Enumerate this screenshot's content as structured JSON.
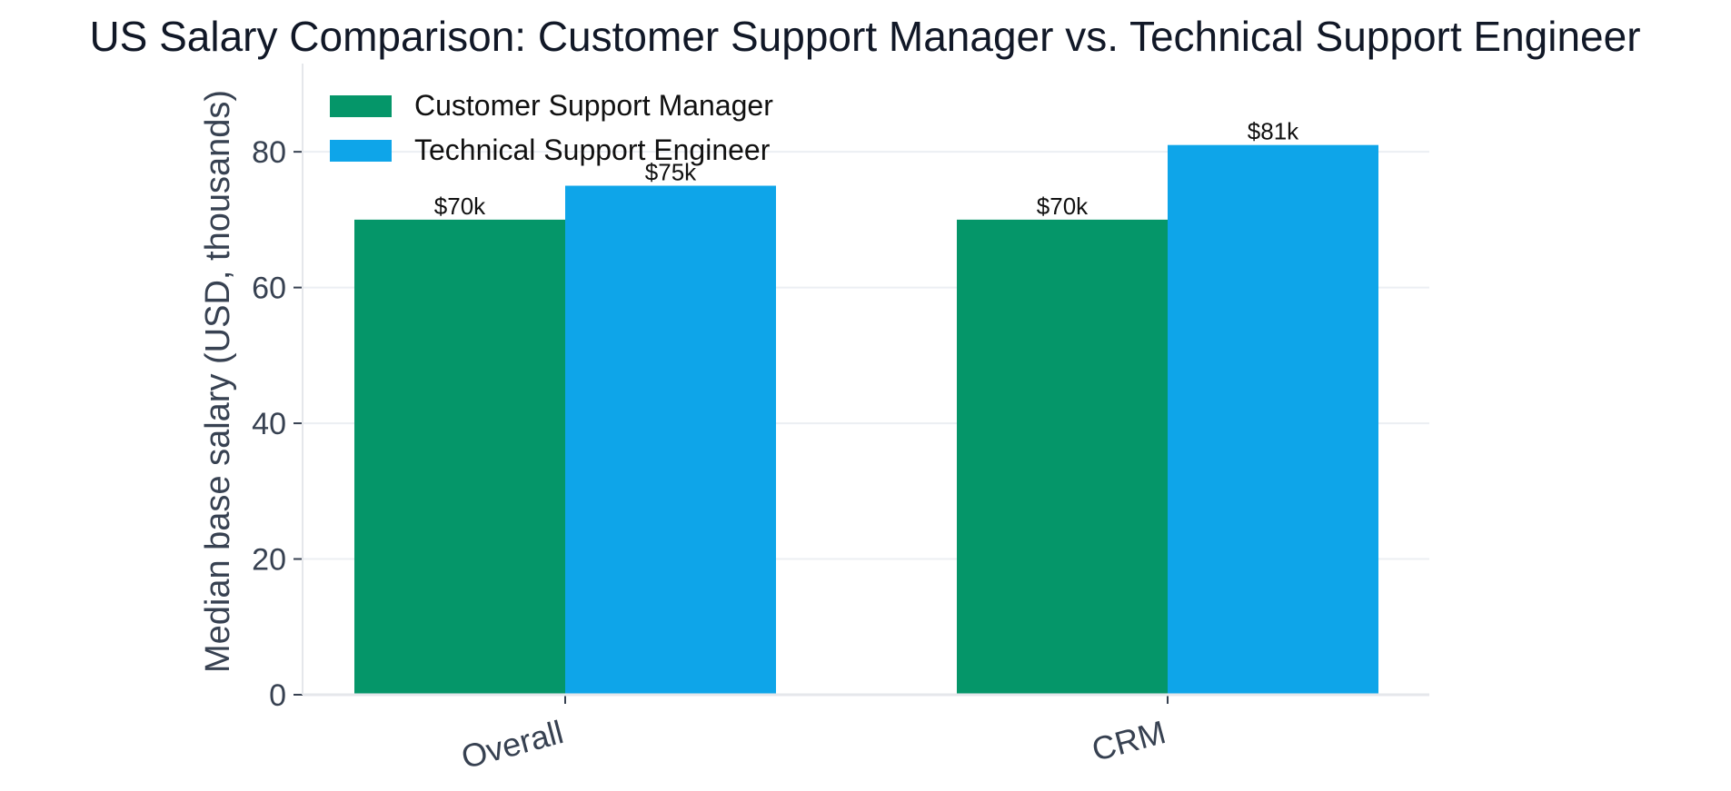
{
  "chart_data": {
    "type": "bar",
    "title": "US Salary Comparison: Customer Support Manager vs. Technical Support Engineer",
    "xlabel": "",
    "ylabel": "Median base salary (USD, thousands)",
    "categories": [
      "Overall",
      "CRM"
    ],
    "series": [
      {
        "name": "Customer Support Manager",
        "values": [
          70,
          70
        ],
        "labels": [
          "$70k",
          "$70k"
        ],
        "color": "#059669"
      },
      {
        "name": "Technical Support Engineer",
        "values": [
          75,
          81
        ],
        "labels": [
          "$75k",
          "$81k"
        ],
        "color": "#0EA5E9"
      }
    ],
    "ylim": [
      0,
      93
    ],
    "yticks": [
      0,
      20,
      40,
      60,
      80
    ],
    "ytick_labels": [
      "0",
      "20",
      "40",
      "60",
      "80"
    ],
    "grid": true,
    "legend_position": "top-left"
  },
  "colors": {
    "title": "#111827",
    "axis_text": "#374151",
    "grid": "#ECEFF3",
    "axis_line": "#E5E7EB"
  }
}
